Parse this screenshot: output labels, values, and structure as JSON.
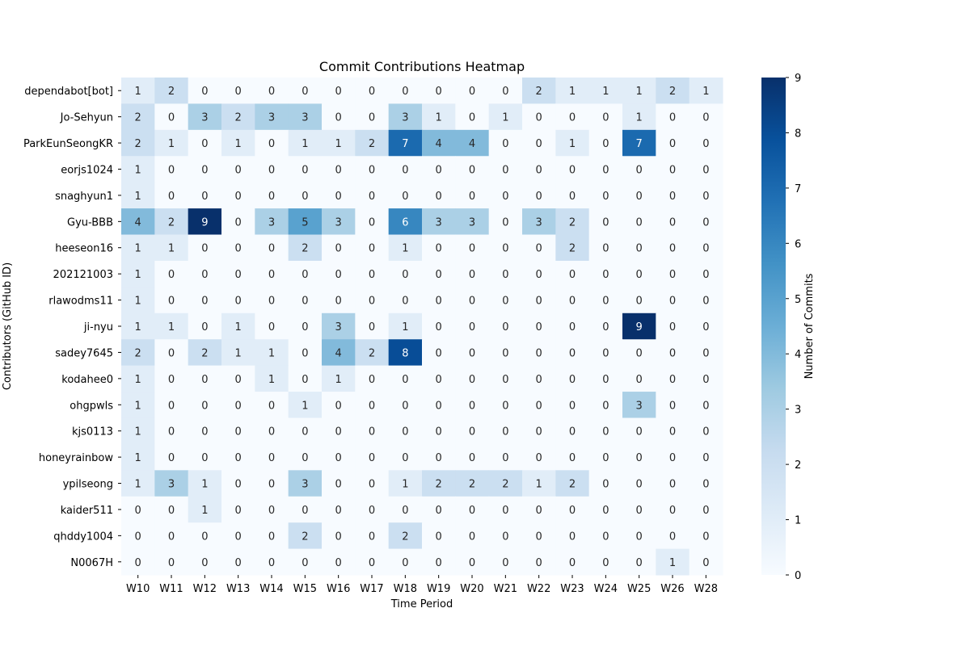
{
  "chart_data": {
    "type": "heatmap",
    "title": "Commit Contributions Heatmap",
    "xlabel": "Time Period",
    "ylabel": "Contributors (GitHub ID)",
    "colorbar_label": "Number of Commits",
    "colorbar_range": [
      0,
      9
    ],
    "colorbar_ticks": [
      "0",
      "1",
      "2",
      "3",
      "4",
      "5",
      "6",
      "7",
      "8",
      "9"
    ],
    "colormap": [
      "#f7fbff",
      "#deebf7",
      "#c6dbef",
      "#9ecae1",
      "#6baed6",
      "#4292c6",
      "#2171b5",
      "#08519c",
      "#08306b"
    ],
    "x": [
      "W10",
      "W11",
      "W12",
      "W13",
      "W14",
      "W15",
      "W16",
      "W17",
      "W18",
      "W19",
      "W20",
      "W21",
      "W22",
      "W23",
      "W24",
      "W25",
      "W26",
      "W28"
    ],
    "y": [
      "dependabot[bot]",
      "Jo-Sehyun",
      "ParkEunSeongKR",
      "eorjs1024",
      "snaghyun1",
      "Gyu-BBB",
      "heeseon16",
      "202121003",
      "rlawodms11",
      "ji-nyu",
      "sadey7645",
      "kodahee0",
      "ohgpwls",
      "kjs0113",
      "honeyrainbow",
      "ypilseong",
      "kaider511",
      "qhddy1004",
      "N0067H"
    ],
    "values": [
      [
        1,
        2,
        0,
        0,
        0,
        0,
        0,
        0,
        0,
        0,
        0,
        0,
        2,
        1,
        1,
        1,
        2,
        1
      ],
      [
        2,
        0,
        3,
        2,
        3,
        3,
        0,
        0,
        3,
        1,
        0,
        1,
        0,
        0,
        0,
        1,
        0,
        0
      ],
      [
        2,
        1,
        0,
        1,
        0,
        1,
        1,
        2,
        7,
        4,
        4,
        0,
        0,
        1,
        0,
        7,
        0,
        0
      ],
      [
        1,
        0,
        0,
        0,
        0,
        0,
        0,
        0,
        0,
        0,
        0,
        0,
        0,
        0,
        0,
        0,
        0,
        0
      ],
      [
        1,
        0,
        0,
        0,
        0,
        0,
        0,
        0,
        0,
        0,
        0,
        0,
        0,
        0,
        0,
        0,
        0,
        0
      ],
      [
        4,
        2,
        9,
        0,
        3,
        5,
        3,
        0,
        6,
        3,
        3,
        0,
        3,
        2,
        0,
        0,
        0,
        0
      ],
      [
        1,
        1,
        0,
        0,
        0,
        2,
        0,
        0,
        1,
        0,
        0,
        0,
        0,
        2,
        0,
        0,
        0,
        0
      ],
      [
        1,
        0,
        0,
        0,
        0,
        0,
        0,
        0,
        0,
        0,
        0,
        0,
        0,
        0,
        0,
        0,
        0,
        0
      ],
      [
        1,
        0,
        0,
        0,
        0,
        0,
        0,
        0,
        0,
        0,
        0,
        0,
        0,
        0,
        0,
        0,
        0,
        0
      ],
      [
        1,
        1,
        0,
        1,
        0,
        0,
        3,
        0,
        1,
        0,
        0,
        0,
        0,
        0,
        0,
        9,
        0,
        0
      ],
      [
        2,
        0,
        2,
        1,
        1,
        0,
        4,
        2,
        8,
        0,
        0,
        0,
        0,
        0,
        0,
        0,
        0,
        0
      ],
      [
        1,
        0,
        0,
        0,
        1,
        0,
        1,
        0,
        0,
        0,
        0,
        0,
        0,
        0,
        0,
        0,
        0,
        0
      ],
      [
        1,
        0,
        0,
        0,
        0,
        1,
        0,
        0,
        0,
        0,
        0,
        0,
        0,
        0,
        0,
        3,
        0,
        0
      ],
      [
        1,
        0,
        0,
        0,
        0,
        0,
        0,
        0,
        0,
        0,
        0,
        0,
        0,
        0,
        0,
        0,
        0,
        0
      ],
      [
        1,
        0,
        0,
        0,
        0,
        0,
        0,
        0,
        0,
        0,
        0,
        0,
        0,
        0,
        0,
        0,
        0,
        0
      ],
      [
        1,
        3,
        1,
        0,
        0,
        3,
        0,
        0,
        1,
        2,
        2,
        2,
        1,
        2,
        0,
        0,
        0,
        0
      ],
      [
        0,
        0,
        1,
        0,
        0,
        0,
        0,
        0,
        0,
        0,
        0,
        0,
        0,
        0,
        0,
        0,
        0,
        0
      ],
      [
        0,
        0,
        0,
        0,
        0,
        2,
        0,
        0,
        2,
        0,
        0,
        0,
        0,
        0,
        0,
        0,
        0,
        0
      ],
      [
        0,
        0,
        0,
        0,
        0,
        0,
        0,
        0,
        0,
        0,
        0,
        0,
        0,
        0,
        0,
        0,
        1,
        0
      ]
    ]
  }
}
